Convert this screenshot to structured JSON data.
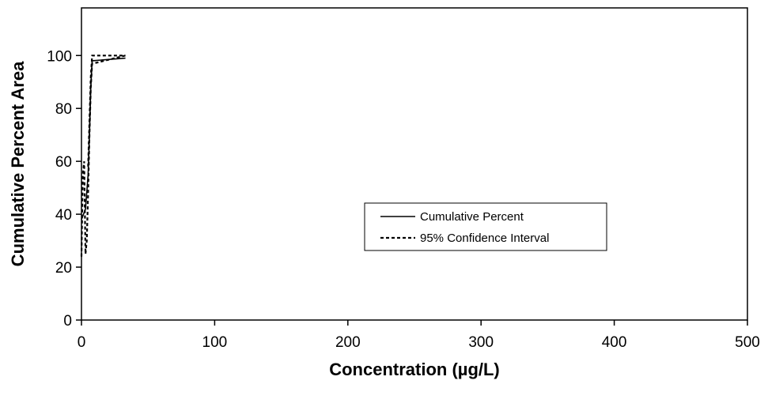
{
  "chart_data": {
    "type": "line",
    "xlabel": "Concentration (µg/L)",
    "ylabel": "Cumulative Percent Area",
    "xlim": [
      0,
      500
    ],
    "ylim": [
      0,
      118
    ],
    "x_ticks": [
      0,
      100,
      200,
      300,
      400,
      500
    ],
    "y_ticks": [
      0,
      20,
      40,
      60,
      80,
      100
    ],
    "grid": false,
    "legend_position": "center-right",
    "series": [
      {
        "name": "Cumulative Percent",
        "style": "solid",
        "color": "#000000",
        "x": [
          0,
          3,
          5,
          6,
          7,
          8,
          33
        ],
        "y": [
          38,
          42,
          55,
          70,
          88,
          98,
          99
        ]
      },
      {
        "name": "95% Confidence Interval",
        "style": "dashed",
        "color": "#000000",
        "x": [
          0,
          1,
          2,
          3,
          4,
          5,
          6,
          7,
          8,
          9,
          33
        ],
        "y": [
          24,
          55,
          60,
          25,
          30,
          48,
          70,
          88,
          97,
          97,
          100
        ]
      },
      {
        "name": "95% Confidence Interval",
        "style": "dashed",
        "color": "#000000",
        "x": [
          5,
          6,
          7,
          8,
          33
        ],
        "y": [
          58,
          75,
          92,
          100,
          100
        ]
      }
    ]
  }
}
